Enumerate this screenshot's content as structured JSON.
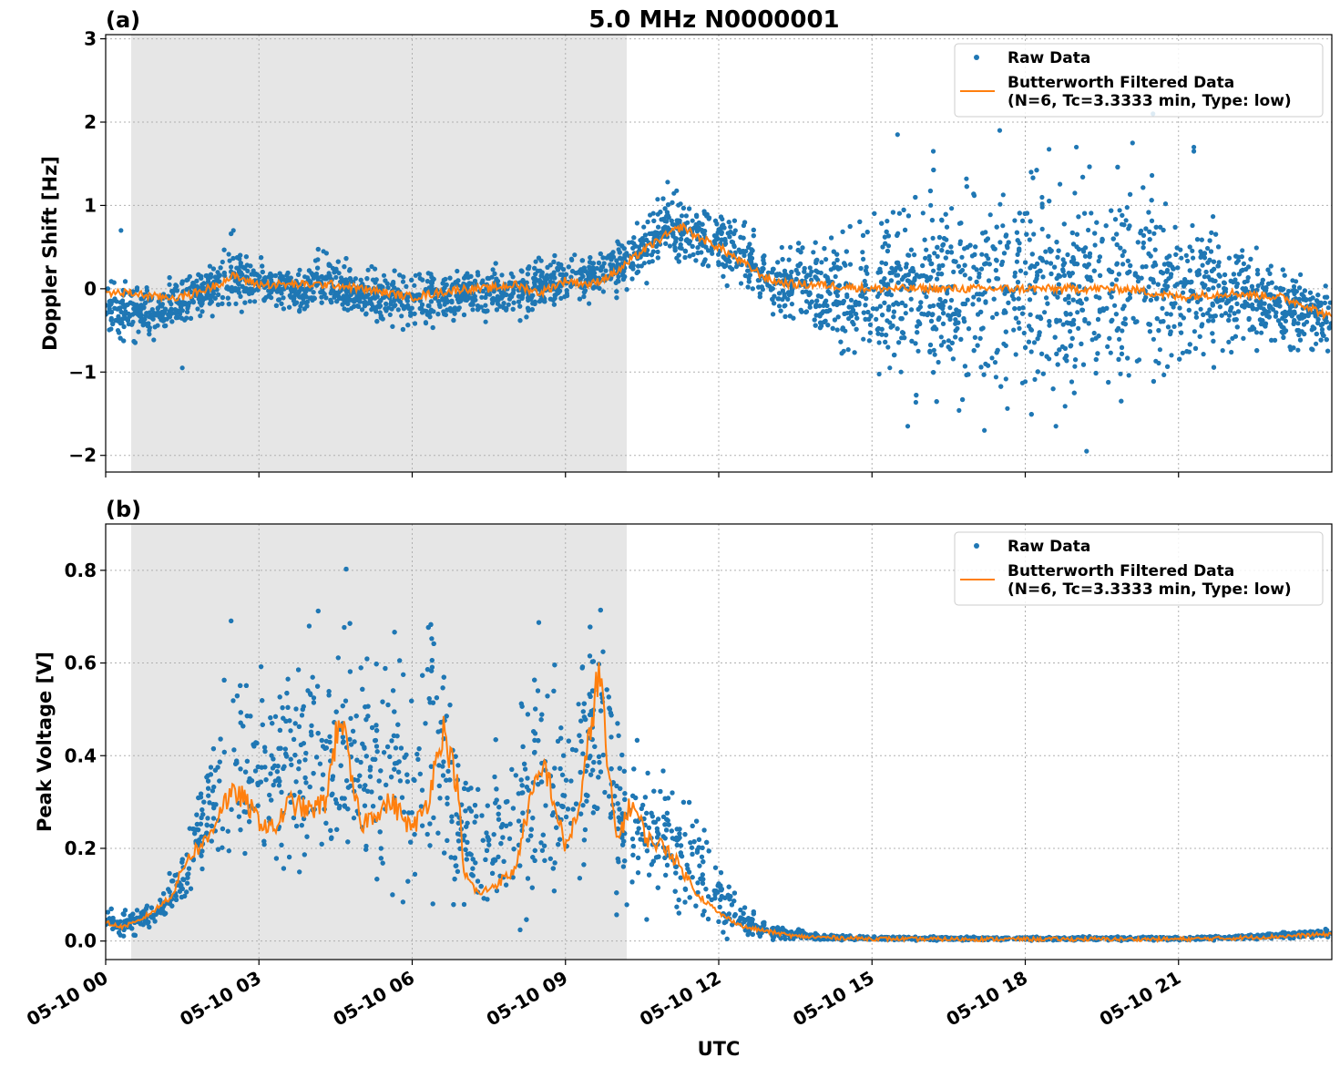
{
  "title": "5.0 MHz N0000001",
  "xlabel": "UTC",
  "colors": {
    "raw": "#1f77b4",
    "filtered": "#ff7f0e",
    "shade": "#e6e6e6"
  },
  "legend": {
    "raw": "Raw Data",
    "filtered_line1": "Butterworth Filtered Data",
    "filtered_line2": "(N=6, Tc=3.3333 min, Type: low)"
  },
  "chart_data": [
    {
      "type": "scatter",
      "panel": "(a)",
      "title": "5.0 MHz N0000001",
      "ylabel": "Doppler Shift [Hz]",
      "xlabel": "",
      "x_unit": "hours UTC on 05-10",
      "xlim": [
        0,
        24
      ],
      "ylim": [
        -2.2,
        3.05
      ],
      "yticks": [
        -2,
        -1,
        0,
        1,
        2,
        3
      ],
      "ytick_labels": [
        "−2",
        "−1",
        "0",
        "1",
        "2",
        "3"
      ],
      "night_shading": [
        0.5,
        10.2
      ],
      "grid": true,
      "legend_position": "upper right",
      "series": [
        {
          "name": "Raw Data",
          "kind": "scatter",
          "x": [
            0,
            1,
            2,
            2.5,
            3,
            4,
            4.2,
            5,
            6,
            7,
            8,
            9,
            10,
            10.5,
            11,
            11.5,
            12,
            12.5,
            13,
            14,
            15,
            16,
            17,
            18,
            19,
            20,
            21,
            22,
            23,
            24
          ],
          "y_upper": [
            0.2,
            0.1,
            0.35,
            0.7,
            0.4,
            0.3,
            0.55,
            0.3,
            0.25,
            0.25,
            0.35,
            0.45,
            0.6,
            0.9,
            1.25,
            1.1,
            1.0,
            0.9,
            0.45,
            0.7,
            1.0,
            1.5,
            1.5,
            1.9,
            1.5,
            1.7,
            1.1,
            0.8,
            0.35,
            0.15
          ],
          "y_lower": [
            -0.6,
            -0.7,
            -0.4,
            -0.3,
            -0.3,
            -0.35,
            -0.35,
            -0.45,
            -0.55,
            -0.4,
            -0.4,
            -0.25,
            -0.15,
            0.0,
            0.25,
            0.15,
            0.1,
            -0.1,
            -0.3,
            -0.7,
            -1.2,
            -1.4,
            -1.5,
            -1.6,
            -1.5,
            -1.4,
            -1.1,
            -0.9,
            -0.8,
            -0.9
          ],
          "outliers": [
            [
              0.3,
              0.7
            ],
            [
              1.5,
              -0.95
            ],
            [
              2.5,
              0.7
            ],
            [
              11.0,
              1.28
            ],
            [
              15.5,
              1.85
            ],
            [
              16.2,
              1.65
            ],
            [
              17.5,
              1.9
            ],
            [
              18.6,
              -1.65
            ],
            [
              19.0,
              1.7
            ],
            [
              19.2,
              -1.95
            ],
            [
              20.1,
              1.75
            ],
            [
              21.3,
              1.7
            ],
            [
              21.3,
              1.65
            ],
            [
              20.5,
              2.1
            ],
            [
              15.7,
              -1.65
            ],
            [
              17.2,
              -1.7
            ]
          ]
        },
        {
          "name": "Butterworth Filtered Data (N=6, Tc=3.3333 min, Type: low)",
          "kind": "line",
          "x": [
            0,
            0.5,
            1,
            1.5,
            2,
            2.5,
            3,
            3.5,
            4,
            4.5,
            5,
            5.5,
            6,
            6.5,
            7,
            7.5,
            8,
            8.5,
            9,
            9.5,
            10,
            10.5,
            11,
            11.3,
            11.5,
            12,
            12.5,
            13,
            13.5,
            14,
            15,
            16,
            17,
            18,
            19,
            20,
            21,
            22,
            23,
            23.5,
            24
          ],
          "y": [
            -0.05,
            -0.05,
            -0.1,
            -0.1,
            0.0,
            0.15,
            0.05,
            0.05,
            0.05,
            0.05,
            0.0,
            -0.05,
            -0.1,
            -0.05,
            0.0,
            0.0,
            0.05,
            -0.05,
            0.1,
            0.05,
            0.2,
            0.45,
            0.65,
            0.75,
            0.65,
            0.5,
            0.3,
            0.1,
            0.05,
            0.05,
            0.0,
            0.0,
            0.0,
            0.0,
            0.0,
            0.0,
            -0.1,
            -0.05,
            -0.1,
            -0.2,
            -0.35
          ]
        }
      ]
    },
    {
      "type": "scatter",
      "panel": "(b)",
      "ylabel": "Peak Voltage [V]",
      "xlabel": "UTC",
      "x_unit": "hours UTC on 05-10",
      "xlim": [
        0,
        24
      ],
      "ylim": [
        -0.04,
        0.9
      ],
      "yticks": [
        0.0,
        0.2,
        0.4,
        0.6,
        0.8
      ],
      "ytick_labels": [
        "0.0",
        "0.2",
        "0.4",
        "0.6",
        "0.8"
      ],
      "xticks": [
        0,
        3,
        6,
        9,
        12,
        15,
        18,
        21
      ],
      "xtick_labels": [
        "05-10 00",
        "05-10 03",
        "05-10 06",
        "05-10 09",
        "05-10 12",
        "05-10 15",
        "05-10 18",
        "05-10 21"
      ],
      "night_shading": [
        0.5,
        10.2
      ],
      "grid": true,
      "legend_position": "upper right",
      "series": [
        {
          "name": "Raw Data",
          "kind": "scatter",
          "x": [
            0,
            0.5,
            1,
            1.5,
            2,
            2.5,
            3,
            3.5,
            4,
            4.5,
            4.7,
            5,
            5.5,
            6,
            6.5,
            7,
            7.5,
            8,
            8.5,
            9,
            9.5,
            9.7,
            10,
            10.5,
            11,
            11.5,
            12,
            12.5,
            13,
            14,
            15,
            18,
            21,
            22,
            23,
            24
          ],
          "y_upper": [
            0.08,
            0.07,
            0.1,
            0.2,
            0.45,
            0.72,
            0.6,
            0.7,
            0.77,
            0.65,
            0.83,
            0.78,
            0.75,
            0.62,
            0.8,
            0.4,
            0.38,
            0.6,
            0.72,
            0.55,
            0.85,
            0.86,
            0.5,
            0.45,
            0.4,
            0.35,
            0.18,
            0.08,
            0.04,
            0.015,
            0.01,
            0.01,
            0.01,
            0.012,
            0.02,
            0.03
          ],
          "y_lower": [
            0.01,
            0.01,
            0.02,
            0.06,
            0.1,
            0.12,
            0.08,
            0.08,
            0.08,
            0.07,
            0.06,
            0.05,
            0.05,
            0.05,
            0.06,
            0.03,
            0.02,
            0.02,
            0.03,
            0.03,
            0.05,
            0.06,
            0.03,
            0.04,
            0.02,
            0.01,
            0.005,
            0.003,
            0.002,
            0.001,
            0.001,
            0.001,
            0.001,
            0.002,
            0.004,
            0.006
          ]
        },
        {
          "name": "Butterworth Filtered Data (N=6, Tc=3.3333 min, Type: low)",
          "kind": "line",
          "x": [
            0,
            0.3,
            0.6,
            1,
            1.3,
            1.6,
            2,
            2.3,
            2.6,
            3,
            3.3,
            3.6,
            4,
            4.3,
            4.6,
            4.8,
            5,
            5.3,
            5.6,
            6,
            6.3,
            6.6,
            6.9,
            7,
            7.3,
            7.6,
            8,
            8.3,
            8.6,
            9,
            9.3,
            9.6,
            9.7,
            9.8,
            10,
            10.3,
            10.6,
            11,
            11.3,
            11.6,
            12,
            12.5,
            13,
            13.5,
            14,
            15,
            16,
            18,
            20,
            21,
            22,
            23,
            24
          ],
          "y": [
            0.04,
            0.03,
            0.04,
            0.07,
            0.1,
            0.18,
            0.22,
            0.3,
            0.32,
            0.26,
            0.24,
            0.3,
            0.28,
            0.3,
            0.5,
            0.35,
            0.25,
            0.28,
            0.3,
            0.24,
            0.3,
            0.46,
            0.33,
            0.15,
            0.1,
            0.12,
            0.15,
            0.3,
            0.38,
            0.2,
            0.3,
            0.55,
            0.57,
            0.4,
            0.22,
            0.3,
            0.22,
            0.2,
            0.15,
            0.1,
            0.06,
            0.03,
            0.02,
            0.01,
            0.008,
            0.005,
            0.004,
            0.004,
            0.004,
            0.004,
            0.006,
            0.01,
            0.015
          ]
        }
      ]
    }
  ]
}
